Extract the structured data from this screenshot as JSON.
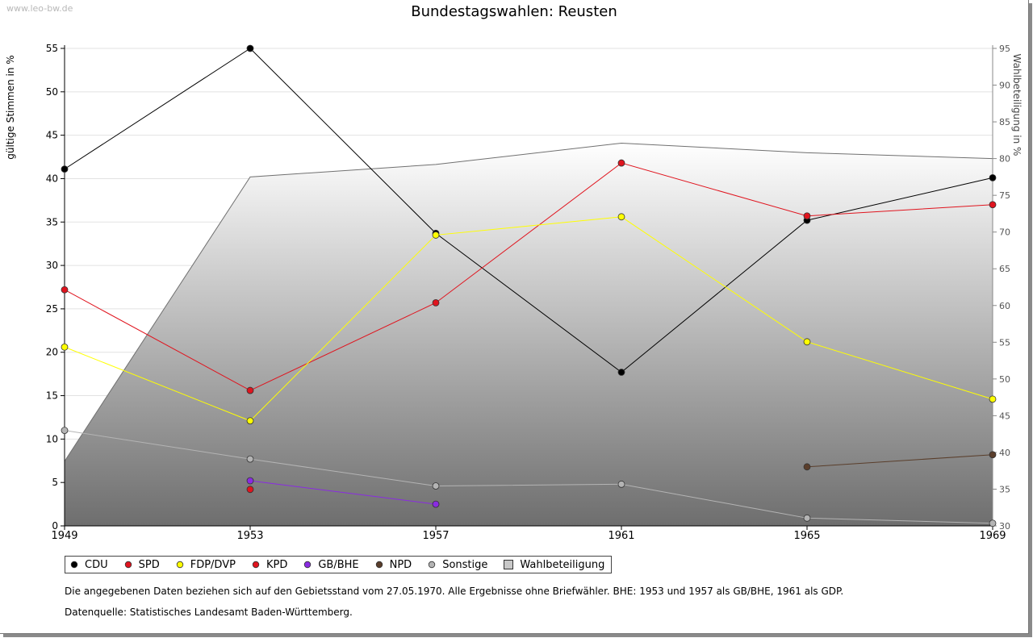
{
  "watermark": "www.leo-bw.de",
  "chart_data": {
    "type": "line",
    "title": "Bundestagswahlen: Reusten",
    "x": [
      "1949",
      "1953",
      "1957",
      "1961",
      "1965",
      "1969"
    ],
    "ylabel": "gültige Stimmen in %",
    "y2label": "Wahlbeteiligung in %",
    "ylim": [
      0,
      55
    ],
    "yticks": [
      0,
      5,
      10,
      15,
      20,
      25,
      30,
      35,
      40,
      45,
      50,
      55
    ],
    "y2lim": [
      30,
      95
    ],
    "y2ticks": [
      30,
      35,
      40,
      45,
      50,
      55,
      60,
      65,
      70,
      75,
      80,
      85,
      90,
      95
    ],
    "grid": true,
    "legend_position": "bottom",
    "series": [
      {
        "name": "CDU",
        "color": "#000000",
        "values": [
          41.1,
          55.0,
          33.7,
          17.7,
          35.2,
          40.1
        ]
      },
      {
        "name": "SPD",
        "color": "#e0141e",
        "values": [
          27.2,
          15.6,
          25.7,
          41.8,
          35.7,
          37.0
        ]
      },
      {
        "name": "FDP/DVP",
        "color": "#ffff00",
        "values": [
          20.6,
          12.1,
          33.5,
          35.6,
          21.2,
          14.6
        ]
      },
      {
        "name": "KPD",
        "color": "#e0141e",
        "values": [
          null,
          4.2,
          null,
          null,
          null,
          null
        ]
      },
      {
        "name": "GB/BHE",
        "color": "#8a2be2",
        "values": [
          null,
          5.2,
          2.5,
          null,
          null,
          null
        ]
      },
      {
        "name": "NPD",
        "color": "#5a3e2b",
        "values": [
          null,
          null,
          null,
          null,
          6.8,
          8.2
        ]
      },
      {
        "name": "Sonstige",
        "color": "#b4b4b4",
        "values": [
          11.0,
          7.7,
          4.6,
          4.8,
          0.9,
          0.3
        ]
      }
    ],
    "area": {
      "name": "Wahlbeteiligung",
      "axis": "right",
      "values": [
        38.8,
        77.5,
        79.2,
        82.1,
        80.8,
        80.0
      ]
    }
  },
  "notes": {
    "line1": "Die angegebenen Daten beziehen sich auf den Gebietsstand vom 27.05.1970. Alle Ergebnisse ohne Briefwähler. BHE: 1953 und 1957 als GB/BHE, 1961 als GDP.",
    "line2": "Datenquelle: Statistisches Landesamt Baden-Württemberg."
  }
}
